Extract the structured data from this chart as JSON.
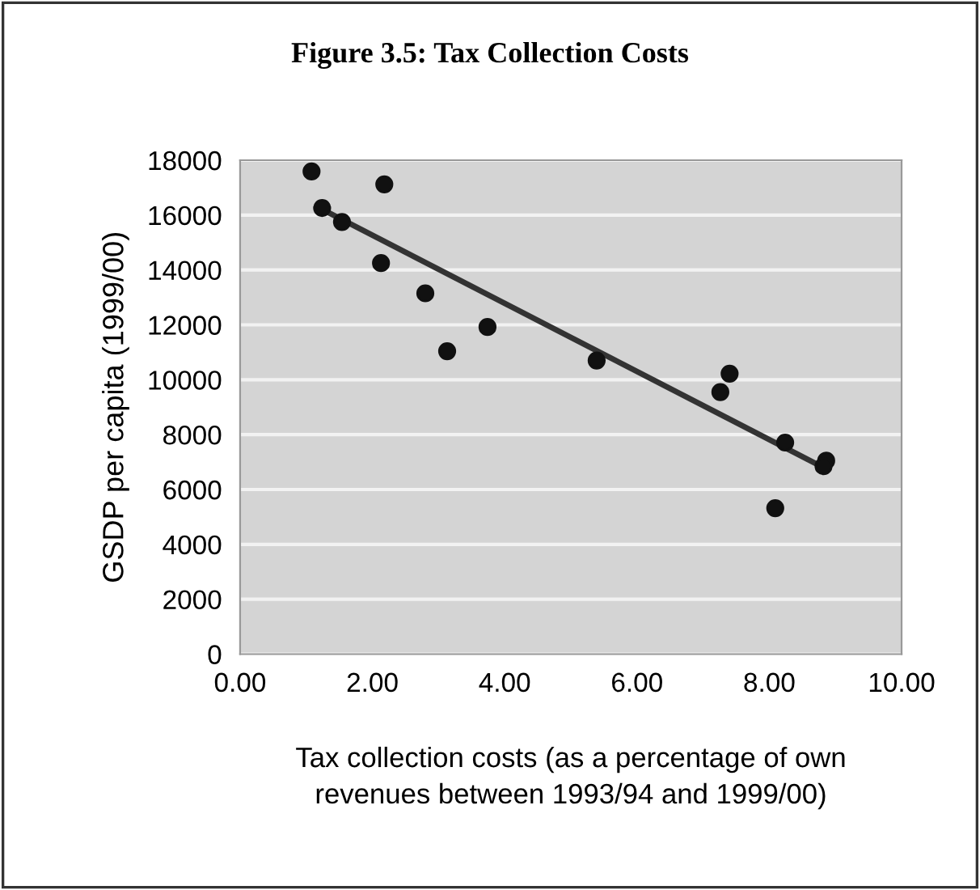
{
  "chart_data": {
    "type": "scatter",
    "title": "Figure 3.5: Tax Collection Costs",
    "xlabel": "Tax collection costs (as a percentage of own\nrevenues between 1993/94 and 1999/00)",
    "ylabel": "GSDP per capita (1999/00)",
    "series": [
      {
        "color": "#111111",
        "marker": "circle",
        "x": [
          1.08,
          2.18,
          1.24,
          1.54,
          2.13,
          2.8,
          3.74,
          3.13,
          5.39,
          7.4,
          7.26,
          8.24,
          8.86,
          8.82,
          8.09
        ],
        "values": [
          17590,
          17120,
          16260,
          15750,
          14250,
          13150,
          11920,
          11040,
          10700,
          10220,
          9550,
          7710,
          7050,
          6850,
          5320
        ]
      },
      {
        "type": "line",
        "color": "#333333",
        "x": [
          1.2,
          8.86
        ],
        "values": [
          16260,
          6750
        ]
      }
    ],
    "xlim": [
      0,
      10
    ],
    "ylim": [
      0,
      18000
    ],
    "xticks": [
      {
        "value": 0,
        "label": "0.00"
      },
      {
        "value": 2,
        "label": "2.00"
      },
      {
        "value": 4,
        "label": "4.00"
      },
      {
        "value": 6,
        "label": "6.00"
      },
      {
        "value": 8,
        "label": "8.00"
      },
      {
        "value": 10,
        "label": "10.00"
      }
    ],
    "yticks": [
      0,
      2000,
      4000,
      6000,
      8000,
      10000,
      12000,
      14000,
      16000,
      18000
    ],
    "grid": "y",
    "legend": false
  }
}
